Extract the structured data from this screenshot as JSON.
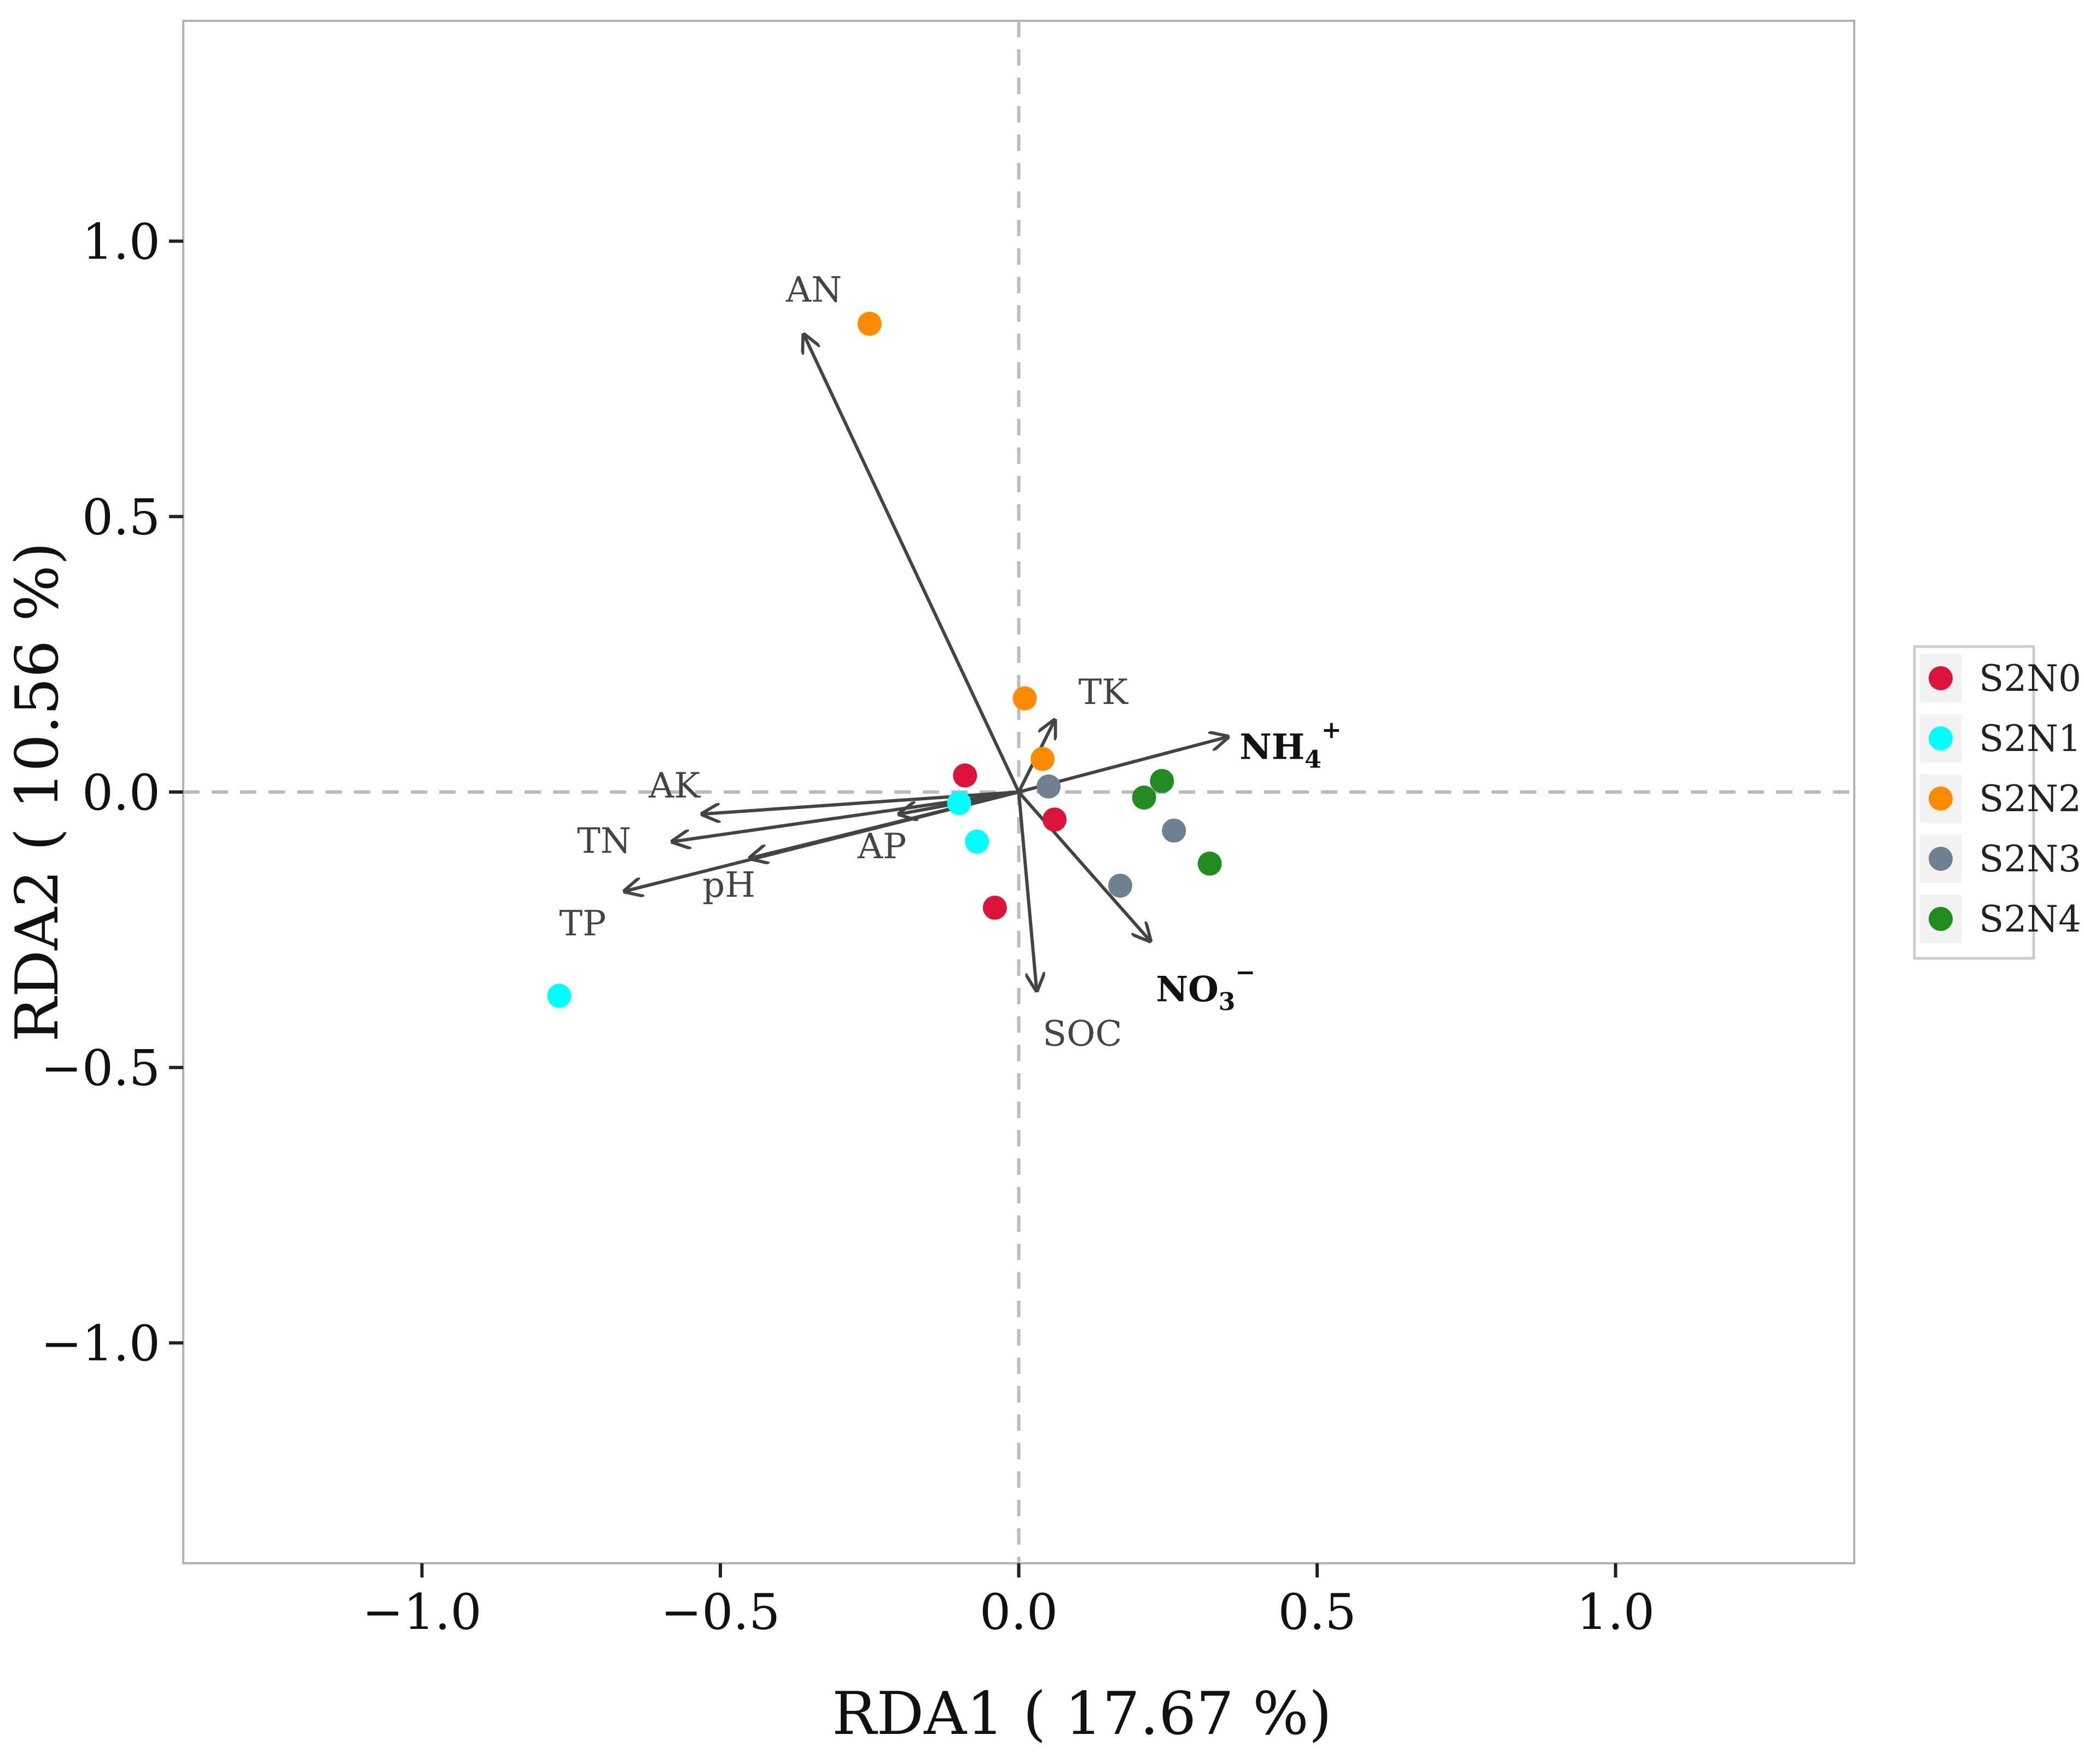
{
  "chart_data": {
    "type": "scatter",
    "subtype": "rda-biplot",
    "xlabel": "RDA1 ( 17.67 %)",
    "ylabel": "RDA2 ( 10.56 %)",
    "xlim": [
      -1.4,
      1.4
    ],
    "ylim": [
      -1.4,
      1.4
    ],
    "xticks": [
      {
        "value": -1.0,
        "label": "−1.0"
      },
      {
        "value": -0.5,
        "label": "−0.5"
      },
      {
        "value": 0.0,
        "label": "0.0"
      },
      {
        "value": 0.5,
        "label": "0.5"
      },
      {
        "value": 1.0,
        "label": "1.0"
      }
    ],
    "yticks": [
      {
        "value": -1.0,
        "label": "−1.0"
      },
      {
        "value": -0.5,
        "label": "−0.5"
      },
      {
        "value": 0.0,
        "label": "0.0"
      },
      {
        "value": 0.5,
        "label": "0.5"
      },
      {
        "value": 1.0,
        "label": "1.0"
      }
    ],
    "grid": false,
    "reference_lines": {
      "x": 0,
      "y": 0,
      "style": "dashed",
      "color": "#bbbbbb"
    },
    "legend_position": "right",
    "series": [
      {
        "name": "S2N0",
        "color": "#dc143c",
        "points": [
          [
            -0.09,
            0.03
          ],
          [
            0.06,
            -0.05
          ],
          [
            -0.04,
            -0.21
          ]
        ]
      },
      {
        "name": "S2N1",
        "color": "#00ffff",
        "points": [
          [
            -0.1,
            -0.02
          ],
          [
            -0.07,
            -0.09
          ],
          [
            -0.77,
            -0.37
          ]
        ]
      },
      {
        "name": "S2N2",
        "color": "#ff8c00",
        "points": [
          [
            -0.25,
            0.85
          ],
          [
            0.01,
            0.17
          ],
          [
            0.04,
            0.06
          ]
        ]
      },
      {
        "name": "S2N3",
        "color": "#708090",
        "points": [
          [
            0.05,
            0.01
          ],
          [
            0.26,
            -0.07
          ],
          [
            0.17,
            -0.17
          ]
        ]
      },
      {
        "name": "S2N4",
        "color": "#228b22",
        "points": [
          [
            0.24,
            0.02
          ],
          [
            0.21,
            -0.01
          ],
          [
            0.32,
            -0.13
          ]
        ]
      }
    ],
    "vectors": [
      {
        "name": "AN",
        "end": [
          -0.36,
          0.83
        ],
        "label_at": [
          -0.39,
          0.89
        ],
        "bold": false
      },
      {
        "name": "TK",
        "end": [
          0.06,
          0.13
        ],
        "label_at": [
          0.1,
          0.16
        ],
        "bold": false
      },
      {
        "name": "NH4",
        "sub": "4",
        "sup": "+",
        "base": "NH",
        "end": [
          0.35,
          0.1
        ],
        "label_at": [
          0.37,
          0.06
        ],
        "bold": true
      },
      {
        "name": "AK",
        "end": [
          -0.53,
          -0.04
        ],
        "label_at": [
          -0.62,
          -0.01
        ],
        "bold": false
      },
      {
        "name": "TN",
        "end": [
          -0.58,
          -0.09
        ],
        "label_at": [
          -0.74,
          -0.11
        ],
        "bold": false
      },
      {
        "name": "AP",
        "end": [
          -0.2,
          -0.04
        ],
        "label_at": [
          -0.27,
          -0.12
        ],
        "bold": false
      },
      {
        "name": "pH",
        "end": [
          -0.45,
          -0.12
        ],
        "label_at": [
          -0.53,
          -0.19
        ],
        "bold": false
      },
      {
        "name": "TP",
        "end": [
          -0.66,
          -0.18
        ],
        "label_at": [
          -0.77,
          -0.26
        ],
        "bold": false
      },
      {
        "name": "SOC",
        "end": [
          0.03,
          -0.36
        ],
        "label_at": [
          0.04,
          -0.46
        ],
        "bold": false
      },
      {
        "name": "NO3",
        "sub": "3",
        "sup": "−",
        "base": "NO",
        "end": [
          0.22,
          -0.27
        ],
        "label_at": [
          0.23,
          -0.38
        ],
        "bold": true
      }
    ]
  }
}
